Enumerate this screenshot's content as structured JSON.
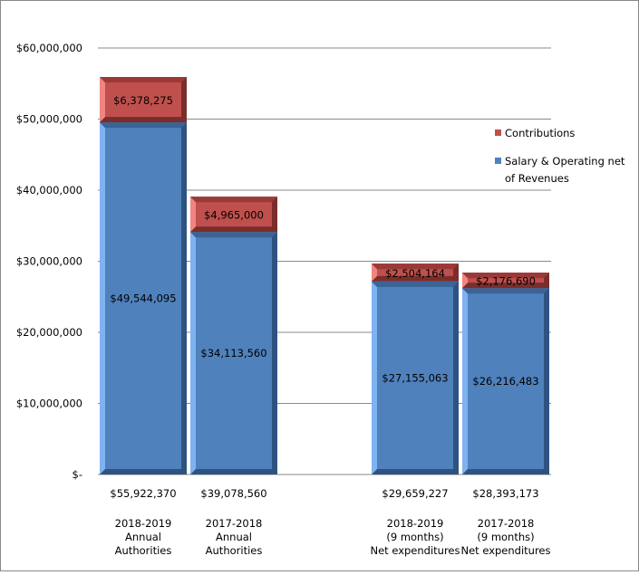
{
  "chart_data": {
    "type": "bar",
    "stacked": true,
    "title": "",
    "xlabel": "",
    "ylabel": "",
    "ylim": [
      0,
      60000000
    ],
    "yticks": [
      0,
      10000000,
      20000000,
      30000000,
      40000000,
      50000000,
      60000000
    ],
    "ytick_labels": [
      "$-",
      "$10,000,000",
      "$20,000,000",
      "$30,000,000",
      "$40,000,000",
      "$50,000,000",
      "$60,000,000"
    ],
    "grid": true,
    "legend_position": "right",
    "categories": [
      [
        "2018-2019",
        "Annual",
        "Authorities"
      ],
      [
        "2017-2018",
        "Annual",
        "Authorities"
      ],
      [],
      [
        "2018-2019",
        "(9 months)",
        "Net expenditures"
      ],
      [
        "2017-2018",
        "(9 months)",
        "Net expenditures"
      ]
    ],
    "totals": [
      55922370,
      39078560,
      null,
      29659227,
      28393173
    ],
    "total_labels": [
      "$55,922,370",
      "$39,078,560",
      "",
      "$29,659,227",
      "$28,393,173"
    ],
    "series": [
      {
        "name": "Salary & Operating net of Revenues",
        "legend_lines": [
          "Salary & Operating net",
          "of Revenues"
        ],
        "color": "#4F81BD",
        "values": [
          49544095,
          34113560,
          null,
          27155063,
          26216483
        ],
        "labels": [
          "$49,544,095",
          "$34,113,560",
          "",
          "$27,155,063",
          "$26,216,483"
        ]
      },
      {
        "name": "Contributions",
        "legend_lines": [
          "Contributions"
        ],
        "color": "#C0504D",
        "values": [
          6378275,
          4965000,
          null,
          2504164,
          2176690
        ],
        "labels": [
          "$6,378,275",
          "$4,965,000",
          "",
          "$2,504,164",
          "$2,176,690"
        ]
      }
    ]
  }
}
